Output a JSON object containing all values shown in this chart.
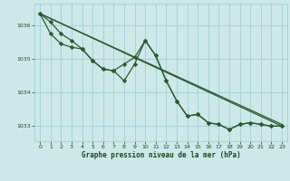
{
  "bg_color": "#cce8e8",
  "grid_color": "#99cccc",
  "line_color": "#2d5a2d",
  "marker_color": "#2d5a2d",
  "text_color": "#1a4a1a",
  "xlabel": "Graphe pression niveau de la mer (hPa)",
  "xlim": [
    -0.5,
    23.5
  ],
  "ylim": [
    1032.55,
    1036.65
  ],
  "yticks": [
    1033,
    1034,
    1035,
    1036
  ],
  "xticks": [
    0,
    1,
    2,
    3,
    4,
    5,
    6,
    7,
    8,
    9,
    10,
    11,
    12,
    13,
    14,
    15,
    16,
    17,
    18,
    19,
    20,
    21,
    22,
    23
  ],
  "straight_line1": {
    "x": [
      0,
      23
    ],
    "y": [
      1036.35,
      1033.0
    ]
  },
  "straight_line2": {
    "x": [
      0,
      23
    ],
    "y": [
      1036.35,
      1033.05
    ]
  },
  "wiggly1": {
    "x": [
      0,
      1,
      2,
      3,
      4,
      5,
      6,
      7,
      8,
      9,
      10,
      11,
      12,
      13,
      14,
      15,
      16,
      17,
      18,
      19,
      20,
      21,
      22,
      23
    ],
    "y": [
      1036.35,
      1035.75,
      1035.45,
      1035.35,
      1035.3,
      1034.95,
      1034.7,
      1034.65,
      1034.85,
      1035.05,
      1035.55,
      1035.1,
      1034.35,
      1033.75,
      1033.3,
      1033.35,
      1033.1,
      1033.05,
      1032.9,
      1033.05,
      1033.1,
      1033.05,
      1033.0,
      1033.0
    ]
  },
  "wiggly2": {
    "x": [
      0,
      1,
      2,
      3,
      4,
      5,
      6,
      7,
      8,
      9,
      10,
      11,
      12,
      13,
      14,
      15,
      16,
      17,
      18,
      19,
      20,
      21,
      22,
      23
    ],
    "y": [
      1036.35,
      1036.1,
      1035.75,
      1035.55,
      1035.3,
      1034.95,
      1034.7,
      1034.65,
      1034.35,
      1034.85,
      1035.55,
      1035.1,
      1034.35,
      1033.75,
      1033.3,
      1033.35,
      1033.1,
      1033.05,
      1032.9,
      1033.05,
      1033.1,
      1033.05,
      1033.0,
      1033.0
    ]
  }
}
